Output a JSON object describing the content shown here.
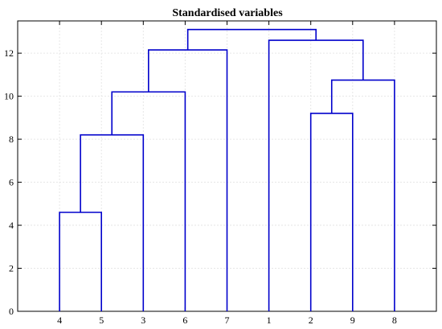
{
  "chart_data": {
    "type": "dendrogram",
    "title": "Standardised variables",
    "xlabel": "",
    "ylabel": "",
    "ylim": [
      0,
      13.5
    ],
    "yticks": [
      0,
      2,
      4,
      6,
      8,
      10,
      12
    ],
    "leaves": [
      "4",
      "5",
      "3",
      "6",
      "7",
      "1",
      "2",
      "9",
      "8"
    ],
    "merges": [
      {
        "left": "leaf:4",
        "right": "leaf:5",
        "height": 4.6
      },
      {
        "left": "leaf:2",
        "right": "leaf:9",
        "height": 9.2
      },
      {
        "left": "merge:0",
        "right": "leaf:3",
        "height": 8.2
      },
      {
        "left": "merge:2",
        "right": "leaf:6",
        "height": 10.2
      },
      {
        "left": "merge:1",
        "right": "leaf:8",
        "height": 10.75
      },
      {
        "left": "merge:3",
        "right": "leaf:7",
        "height": 12.15
      },
      {
        "left": "leaf:1",
        "right": "merge:4",
        "height": 12.6
      },
      {
        "left": "merge:5",
        "right": "merge:6",
        "height": 13.1
      }
    ],
    "grid": true,
    "line_color": "#0000cc"
  }
}
